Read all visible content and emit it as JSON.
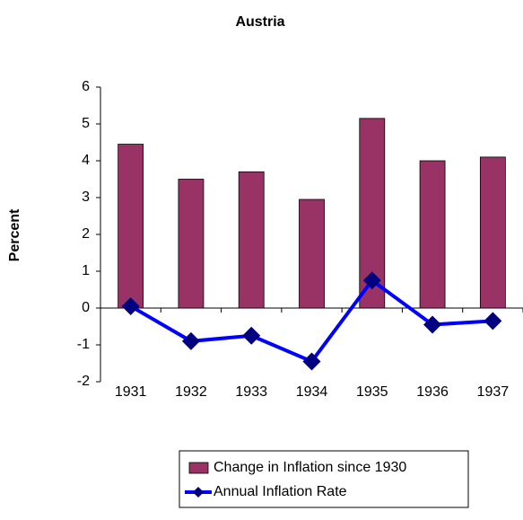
{
  "chart_data": {
    "type": "bar-line",
    "title": "Austria",
    "y_label": "Percent",
    "categories": [
      "1931",
      "1932",
      "1933",
      "1934",
      "1935",
      "1936",
      "1937"
    ],
    "series": [
      {
        "name": "Change in Inflation since 1930",
        "type": "bar",
        "color": "#993366",
        "values": [
          4.45,
          3.5,
          3.7,
          2.95,
          5.15,
          4.0,
          4.1
        ]
      },
      {
        "name": "Annual Inflation Rate",
        "type": "line",
        "color": "#0000ff",
        "marker_color": "#000080",
        "values": [
          0.05,
          -0.9,
          -0.75,
          -1.45,
          0.75,
          -0.45,
          -0.35
        ]
      }
    ],
    "ylim": [
      -2,
      6
    ],
    "yticks": [
      -2,
      -1,
      0,
      1,
      2,
      3,
      4,
      5,
      6
    ],
    "grid": false,
    "legend": "bottom"
  }
}
